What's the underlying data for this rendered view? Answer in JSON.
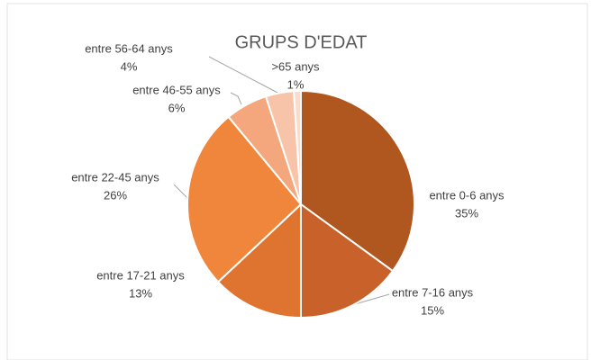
{
  "chart_data": {
    "type": "pie",
    "title": "GRUPS D'EDAT",
    "categories": [
      "entre 0-6 anys",
      "entre 7-16 anys",
      "entre 17-21 anys",
      "entre 22-45 anys",
      "entre 46-55 anys",
      "entre 56-64 anys",
      ">65 anys"
    ],
    "values": [
      35,
      15,
      13,
      26,
      6,
      4,
      1
    ],
    "value_labels": [
      "35%",
      "15%",
      "13%",
      "26%",
      "6%",
      "4%",
      "1%"
    ],
    "colors": [
      "#b0561f",
      "#c9622a",
      "#df7430",
      "#f0863b",
      "#f4a67c",
      "#f7c4a9",
      "#fadccc"
    ]
  }
}
